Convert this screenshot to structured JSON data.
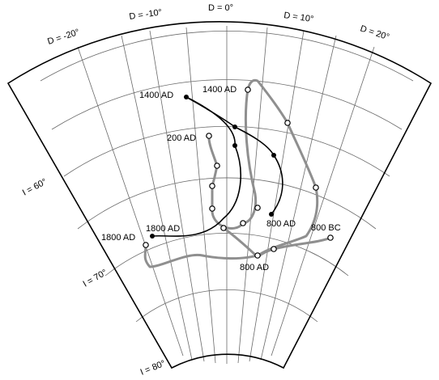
{
  "declination_labels": [
    "D = -20°",
    "D = -10°",
    "D = 0°",
    "D = 10°",
    "D = 20°"
  ],
  "inclination_labels": [
    "I = 60°",
    "I = 70°",
    "I = 80°"
  ],
  "gray_curve_labels": {
    "start_a": "1400 AD",
    "start_b": "200 AD",
    "end": "1800 AD",
    "mid_a": "800 AD",
    "mid_b": "800 BC"
  },
  "black_curve_labels": {
    "start": "1400 AD",
    "end": "1800 AD",
    "mid": "800 AD"
  },
  "colors": {
    "grid": "#6a6a6a",
    "frame": "#000000",
    "gray_curve": "#8f8f8f",
    "black_curve": "#000000",
    "background": "#ffffff"
  }
}
